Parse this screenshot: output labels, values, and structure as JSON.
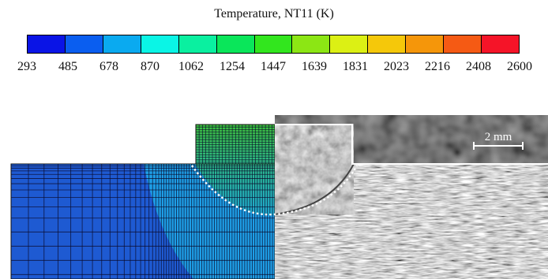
{
  "legend": {
    "title": "Temperature, NT11 (K)",
    "ticks": [
      "293",
      "485",
      "678",
      "870",
      "1062",
      "1254",
      "1447",
      "1639",
      "1831",
      "2023",
      "2216",
      "2408",
      "2600"
    ],
    "colors": [
      "#0a14e6",
      "#0a5ef0",
      "#0aaaf0",
      "#0af5e6",
      "#0af0a0",
      "#0ae65a",
      "#32e61e",
      "#8ce614",
      "#dcf014",
      "#f5c80a",
      "#f5960a",
      "#f55a14",
      "#f51428"
    ]
  },
  "scale_bar": {
    "label": "2 mm"
  },
  "simulation_colors": {
    "cool_plate": "#1e5ad2",
    "warm_zone": "#1e9ee6",
    "fusion_zone_top": "#3cbe4a",
    "fusion_zone_bottom": "#1eaac8"
  }
}
